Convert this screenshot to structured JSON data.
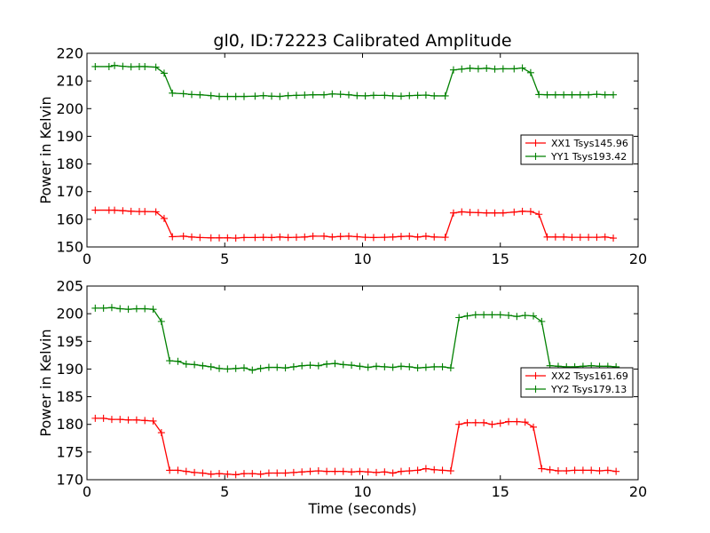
{
  "chart_data": [
    {
      "type": "line",
      "title": "gl0, ID:72223 Calibrated Amplitude",
      "xlabel": "",
      "ylabel": "Power in Kelvin",
      "xlim": [
        0,
        20
      ],
      "ylim": [
        150,
        220
      ],
      "xticks": [
        0,
        5,
        10,
        15,
        20
      ],
      "yticks": [
        150,
        160,
        170,
        180,
        190,
        200,
        210,
        220
      ],
      "legend_position": "center-right",
      "grid": false,
      "x": [
        0.3,
        0.8,
        1.0,
        1.3,
        1.6,
        1.9,
        2.1,
        2.5,
        2.8,
        3.1,
        3.5,
        3.8,
        4.1,
        4.5,
        4.8,
        5.1,
        5.4,
        5.7,
        6.1,
        6.4,
        6.7,
        7.0,
        7.3,
        7.6,
        7.9,
        8.2,
        8.6,
        8.9,
        9.2,
        9.5,
        9.8,
        10.1,
        10.4,
        10.8,
        11.1,
        11.4,
        11.7,
        12.0,
        12.3,
        12.6,
        13.0,
        13.3,
        13.6,
        13.9,
        14.2,
        14.5,
        14.8,
        15.1,
        15.5,
        15.8,
        16.1,
        16.4,
        16.7,
        17.0,
        17.3,
        17.6,
        17.9,
        18.2,
        18.5,
        18.8,
        19.1
      ],
      "series": [
        {
          "name": "XX1 Tsys145.96",
          "color": "#ff0000",
          "values": [
            163.3,
            163.3,
            163.3,
            163.1,
            162.9,
            162.8,
            162.8,
            162.7,
            160.3,
            153.7,
            153.9,
            153.6,
            153.4,
            153.3,
            153.3,
            153.3,
            153.2,
            153.4,
            153.4,
            153.5,
            153.4,
            153.6,
            153.4,
            153.5,
            153.6,
            153.9,
            153.9,
            153.6,
            153.8,
            153.9,
            153.7,
            153.5,
            153.4,
            153.5,
            153.6,
            153.8,
            153.9,
            153.6,
            153.9,
            153.6,
            153.5,
            162.3,
            162.7,
            162.5,
            162.4,
            162.3,
            162.3,
            162.3,
            162.6,
            162.9,
            162.8,
            161.8,
            153.6,
            153.6,
            153.6,
            153.5,
            153.5,
            153.5,
            153.5,
            153.6,
            153.2
          ]
        },
        {
          "name": "YY1 Tsys193.42",
          "color": "#008000",
          "values": [
            215.2,
            215.2,
            215.6,
            215.3,
            215.1,
            215.2,
            215.2,
            215.0,
            212.8,
            205.6,
            205.4,
            205.1,
            205.0,
            204.7,
            204.4,
            204.4,
            204.4,
            204.4,
            204.5,
            204.7,
            204.5,
            204.4,
            204.7,
            204.8,
            204.9,
            205.0,
            205.0,
            205.3,
            205.2,
            205.0,
            204.7,
            204.6,
            204.8,
            204.8,
            204.6,
            204.5,
            204.7,
            204.8,
            204.9,
            204.6,
            204.6,
            214.0,
            214.3,
            214.6,
            214.4,
            214.6,
            214.3,
            214.4,
            214.4,
            214.7,
            213.0,
            205.1,
            205.0,
            205.0,
            205.0,
            205.0,
            205.0,
            205.0,
            205.2,
            205.0,
            205.0
          ]
        }
      ]
    },
    {
      "type": "line",
      "title": "",
      "xlabel": "Time (seconds)",
      "ylabel": "Power in Kelvin",
      "xlim": [
        0,
        20
      ],
      "ylim": [
        170,
        205
      ],
      "xticks": [
        0,
        5,
        10,
        15,
        20
      ],
      "yticks": [
        170,
        175,
        180,
        185,
        190,
        195,
        200,
        205
      ],
      "legend_position": "center-right",
      "grid": false,
      "x": [
        0.3,
        0.6,
        0.9,
        1.2,
        1.5,
        1.8,
        2.1,
        2.4,
        2.7,
        3.0,
        3.3,
        3.6,
        3.9,
        4.2,
        4.5,
        4.8,
        5.1,
        5.4,
        5.7,
        6.0,
        6.3,
        6.6,
        6.9,
        7.2,
        7.5,
        7.8,
        8.1,
        8.4,
        8.7,
        9.0,
        9.3,
        9.6,
        9.9,
        10.2,
        10.5,
        10.8,
        11.1,
        11.4,
        11.7,
        12.0,
        12.3,
        12.6,
        12.9,
        13.2,
        13.5,
        13.8,
        14.1,
        14.4,
        14.7,
        15.0,
        15.3,
        15.6,
        15.9,
        16.2,
        16.5,
        16.8,
        17.1,
        17.4,
        17.7,
        18.0,
        18.3,
        18.6,
        18.9,
        19.2
      ],
      "series": [
        {
          "name": "XX2 Tsys161.69",
          "color": "#ff0000",
          "values": [
            181.1,
            181.1,
            180.9,
            180.9,
            180.8,
            180.8,
            180.7,
            180.6,
            178.5,
            171.7,
            171.7,
            171.5,
            171.3,
            171.2,
            171.0,
            171.1,
            171.0,
            170.9,
            171.1,
            171.1,
            171.0,
            171.2,
            171.2,
            171.2,
            171.3,
            171.4,
            171.5,
            171.6,
            171.5,
            171.5,
            171.5,
            171.4,
            171.5,
            171.4,
            171.3,
            171.4,
            171.2,
            171.5,
            171.6,
            171.7,
            172.0,
            171.8,
            171.7,
            171.6,
            180.0,
            180.3,
            180.3,
            180.3,
            180.0,
            180.2,
            180.5,
            180.5,
            180.4,
            179.5,
            172.0,
            171.8,
            171.6,
            171.6,
            171.7,
            171.7,
            171.7,
            171.6,
            171.7,
            171.5
          ]
        },
        {
          "name": "YY2 Tsys179.13",
          "color": "#008000",
          "values": [
            201.0,
            201.0,
            201.1,
            200.9,
            200.8,
            200.9,
            200.9,
            200.8,
            198.6,
            191.5,
            191.4,
            190.9,
            190.8,
            190.6,
            190.4,
            190.1,
            190.0,
            190.1,
            190.2,
            189.8,
            190.1,
            190.3,
            190.3,
            190.2,
            190.4,
            190.6,
            190.7,
            190.6,
            190.9,
            191.0,
            190.8,
            190.7,
            190.5,
            190.3,
            190.5,
            190.4,
            190.3,
            190.5,
            190.4,
            190.2,
            190.3,
            190.4,
            190.4,
            190.2,
            199.3,
            199.6,
            199.8,
            199.8,
            199.8,
            199.8,
            199.7,
            199.5,
            199.7,
            199.6,
            198.6,
            190.6,
            190.5,
            190.4,
            190.4,
            190.5,
            190.6,
            190.5,
            190.5,
            190.4
          ]
        }
      ]
    }
  ]
}
